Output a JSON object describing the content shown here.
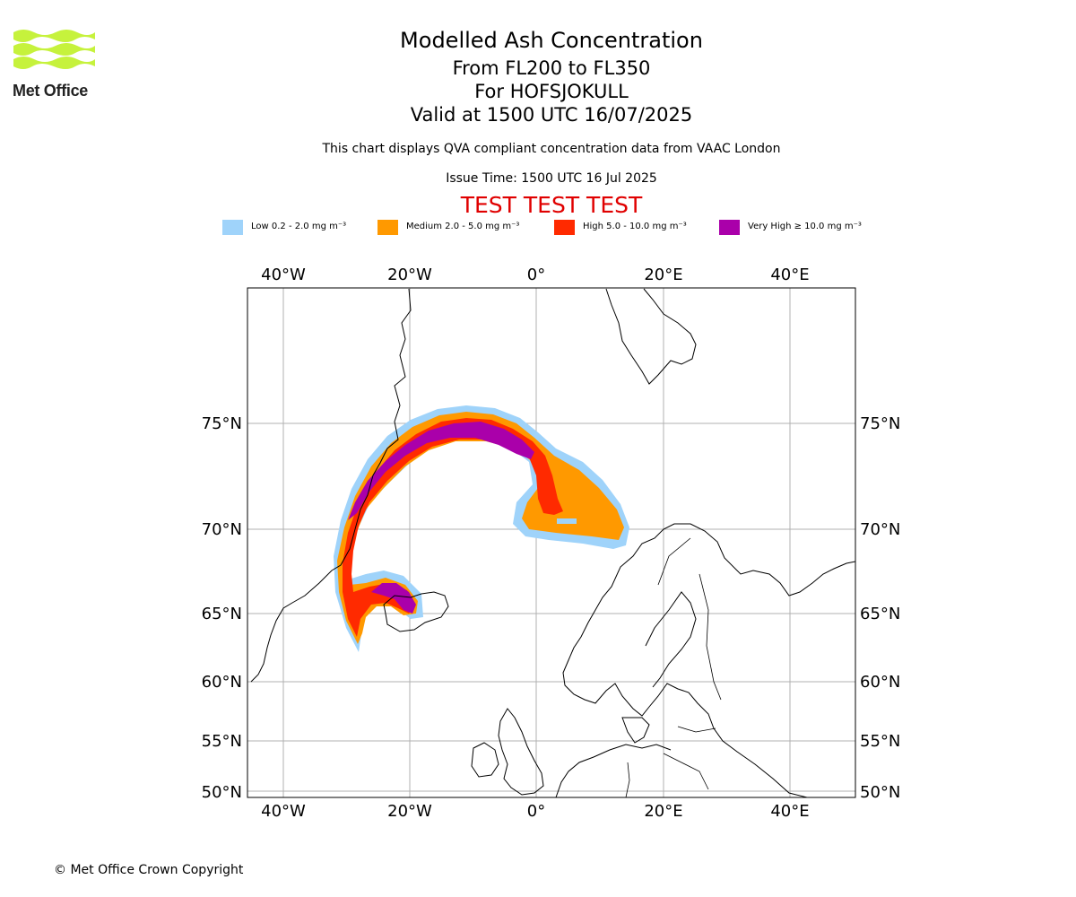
{
  "header": {
    "logo_text": "Met Office",
    "title": "Modelled Ash Concentration",
    "levels": "From FL200 to FL350",
    "volcano": "For HOFSJOKULL",
    "valid": "Valid at 1500 UTC 16/07/2025",
    "description": "This chart displays QVA compliant concentration data from VAAC London",
    "issue_time": "Issue Time: 1500 UTC 16 Jul 2025",
    "test_banner": "TEST TEST TEST"
  },
  "legend": [
    {
      "label": "Low 0.2 - 2.0 mg m⁻³",
      "color": "#9fd3fa"
    },
    {
      "label": "Medium 2.0 - 5.0 mg m⁻³",
      "color": "#ff9900"
    },
    {
      "label": "High 5.0 - 10.0 mg m⁻³",
      "color": "#ff2a00"
    },
    {
      "label": "Very High ≥ 10.0 mg m⁻³",
      "color": "#aa00aa"
    }
  ],
  "map": {
    "lon_ticks": [
      "40°W",
      "20°W",
      "0°",
      "20°E",
      "40°E"
    ],
    "lat_ticks": [
      "75°N",
      "70°N",
      "65°N",
      "60°N",
      "55°N",
      "50°N"
    ]
  },
  "footer": {
    "copyright": "© Met Office Crown Copyright"
  }
}
